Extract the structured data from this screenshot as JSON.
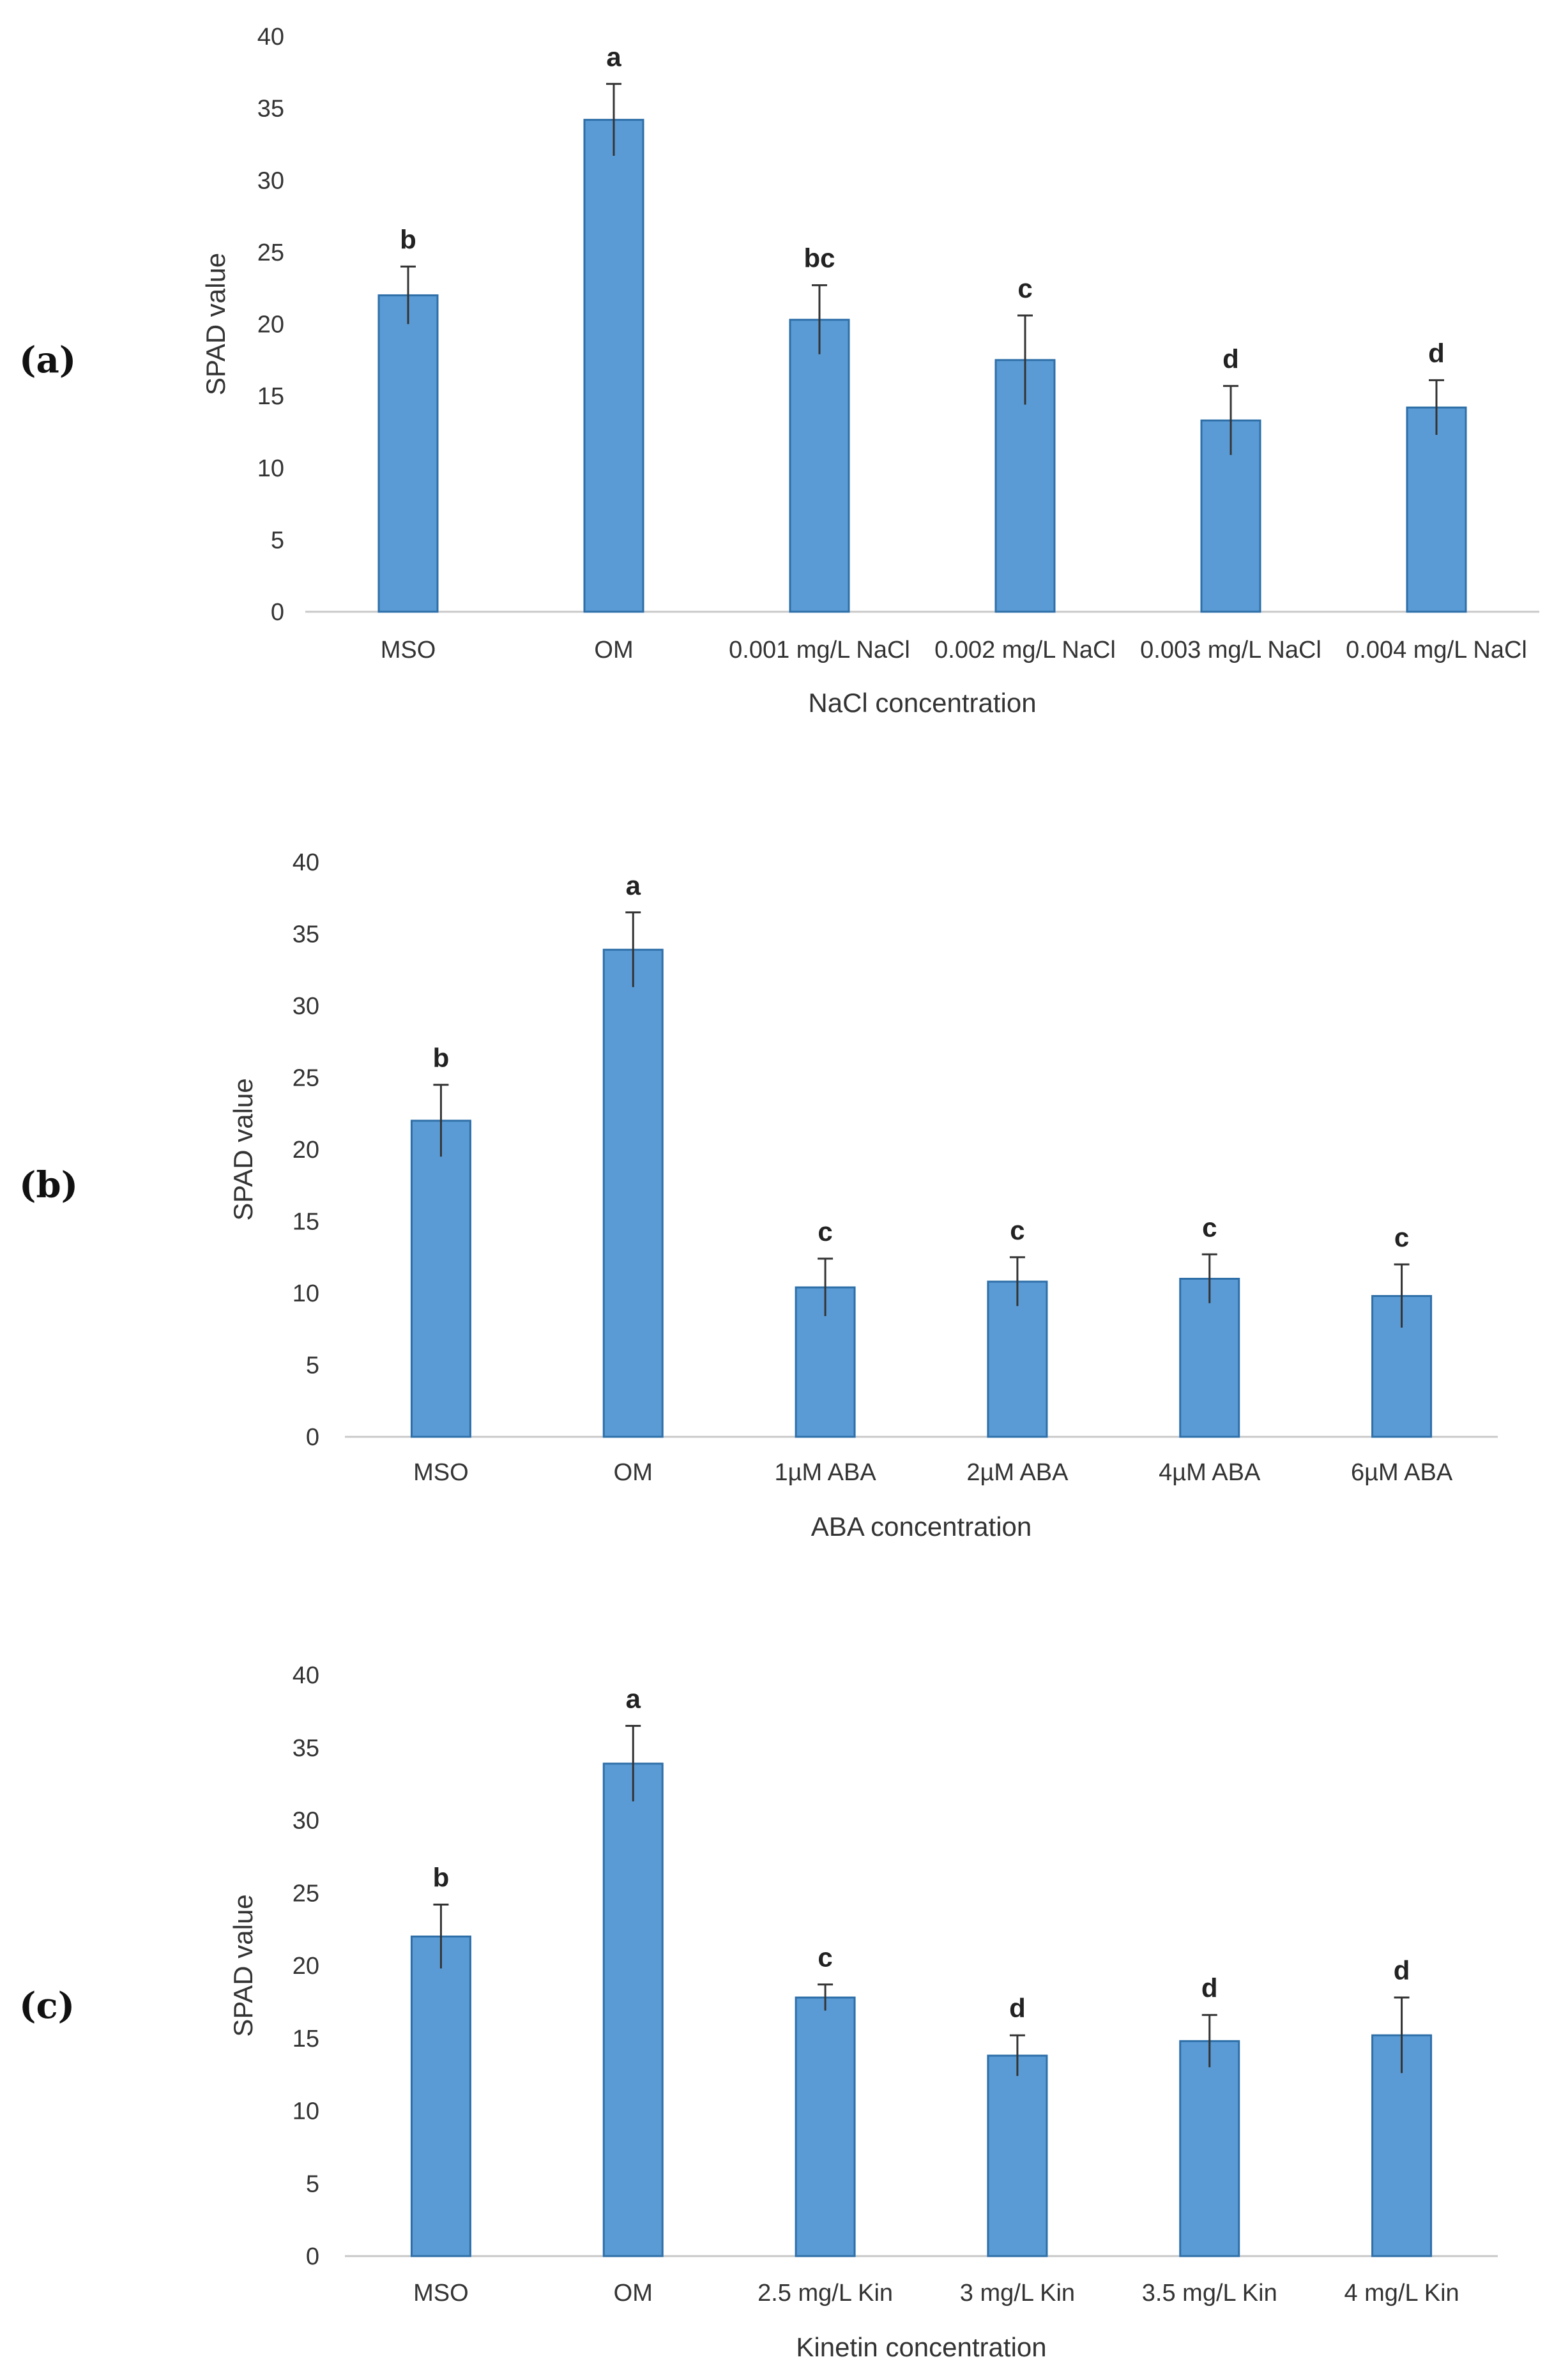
{
  "chart_data": [
    {
      "type": "bar",
      "panel": "(a)",
      "categories": [
        "MSO",
        "OM",
        "0.001 mg/L NaCl",
        "0.002 mg/L  NaCl",
        "0.003 mg/L  NaCl",
        "0.004 mg/L  NaCl"
      ],
      "values": [
        22,
        34.2,
        20.3,
        17.5,
        13.3,
        14.2
      ],
      "errors": [
        2.0,
        2.5,
        2.4,
        3.1,
        2.4,
        1.9
      ],
      "significance": [
        "b",
        "a",
        "bc",
        "c",
        "d",
        "d"
      ],
      "xlabel": "NaCl concentration",
      "ylabel": "SPAD value",
      "ylim": [
        0,
        40
      ],
      "yticks": [
        "0",
        "5",
        "10",
        "15",
        "20",
        "25",
        "30",
        "35",
        "40"
      ],
      "color": "#5b9bd5"
    },
    {
      "type": "bar",
      "panel": "(b)",
      "categories": [
        "MSO",
        "OM",
        "1µM ABA",
        "2µM ABA",
        "4µM ABA",
        "6µM ABA"
      ],
      "values": [
        22,
        33.9,
        10.4,
        10.8,
        11.0,
        9.8
      ],
      "errors": [
        2.5,
        2.6,
        2.0,
        1.7,
        1.7,
        2.2
      ],
      "significance": [
        "b",
        "a",
        "c",
        "c",
        "c",
        "c"
      ],
      "xlabel": "ABA concentration",
      "ylabel": "SPAD value",
      "ylim": [
        0,
        40
      ],
      "yticks": [
        "0",
        "5",
        "10",
        "15",
        "20",
        "25",
        "30",
        "35",
        "40"
      ],
      "color": "#5b9bd5"
    },
    {
      "type": "bar",
      "panel": "(c)",
      "categories": [
        "MSO",
        "OM",
        "2.5 mg/L Kin",
        "3 mg/L Kin",
        "3.5 mg/L Kin",
        "4 mg/L Kin"
      ],
      "values": [
        22,
        33.9,
        17.8,
        13.8,
        14.8,
        15.2
      ],
      "errors": [
        2.2,
        2.6,
        0.9,
        1.4,
        1.8,
        2.6
      ],
      "significance": [
        "b",
        "a",
        "c",
        "d",
        "d",
        "d"
      ],
      "xlabel": "Kinetin concentration",
      "ylabel": "SPAD value",
      "ylim": [
        0,
        40
      ],
      "yticks": [
        "0",
        "5",
        "10",
        "15",
        "20",
        "25",
        "30",
        "35",
        "40"
      ],
      "color": "#5b9bd5"
    }
  ]
}
